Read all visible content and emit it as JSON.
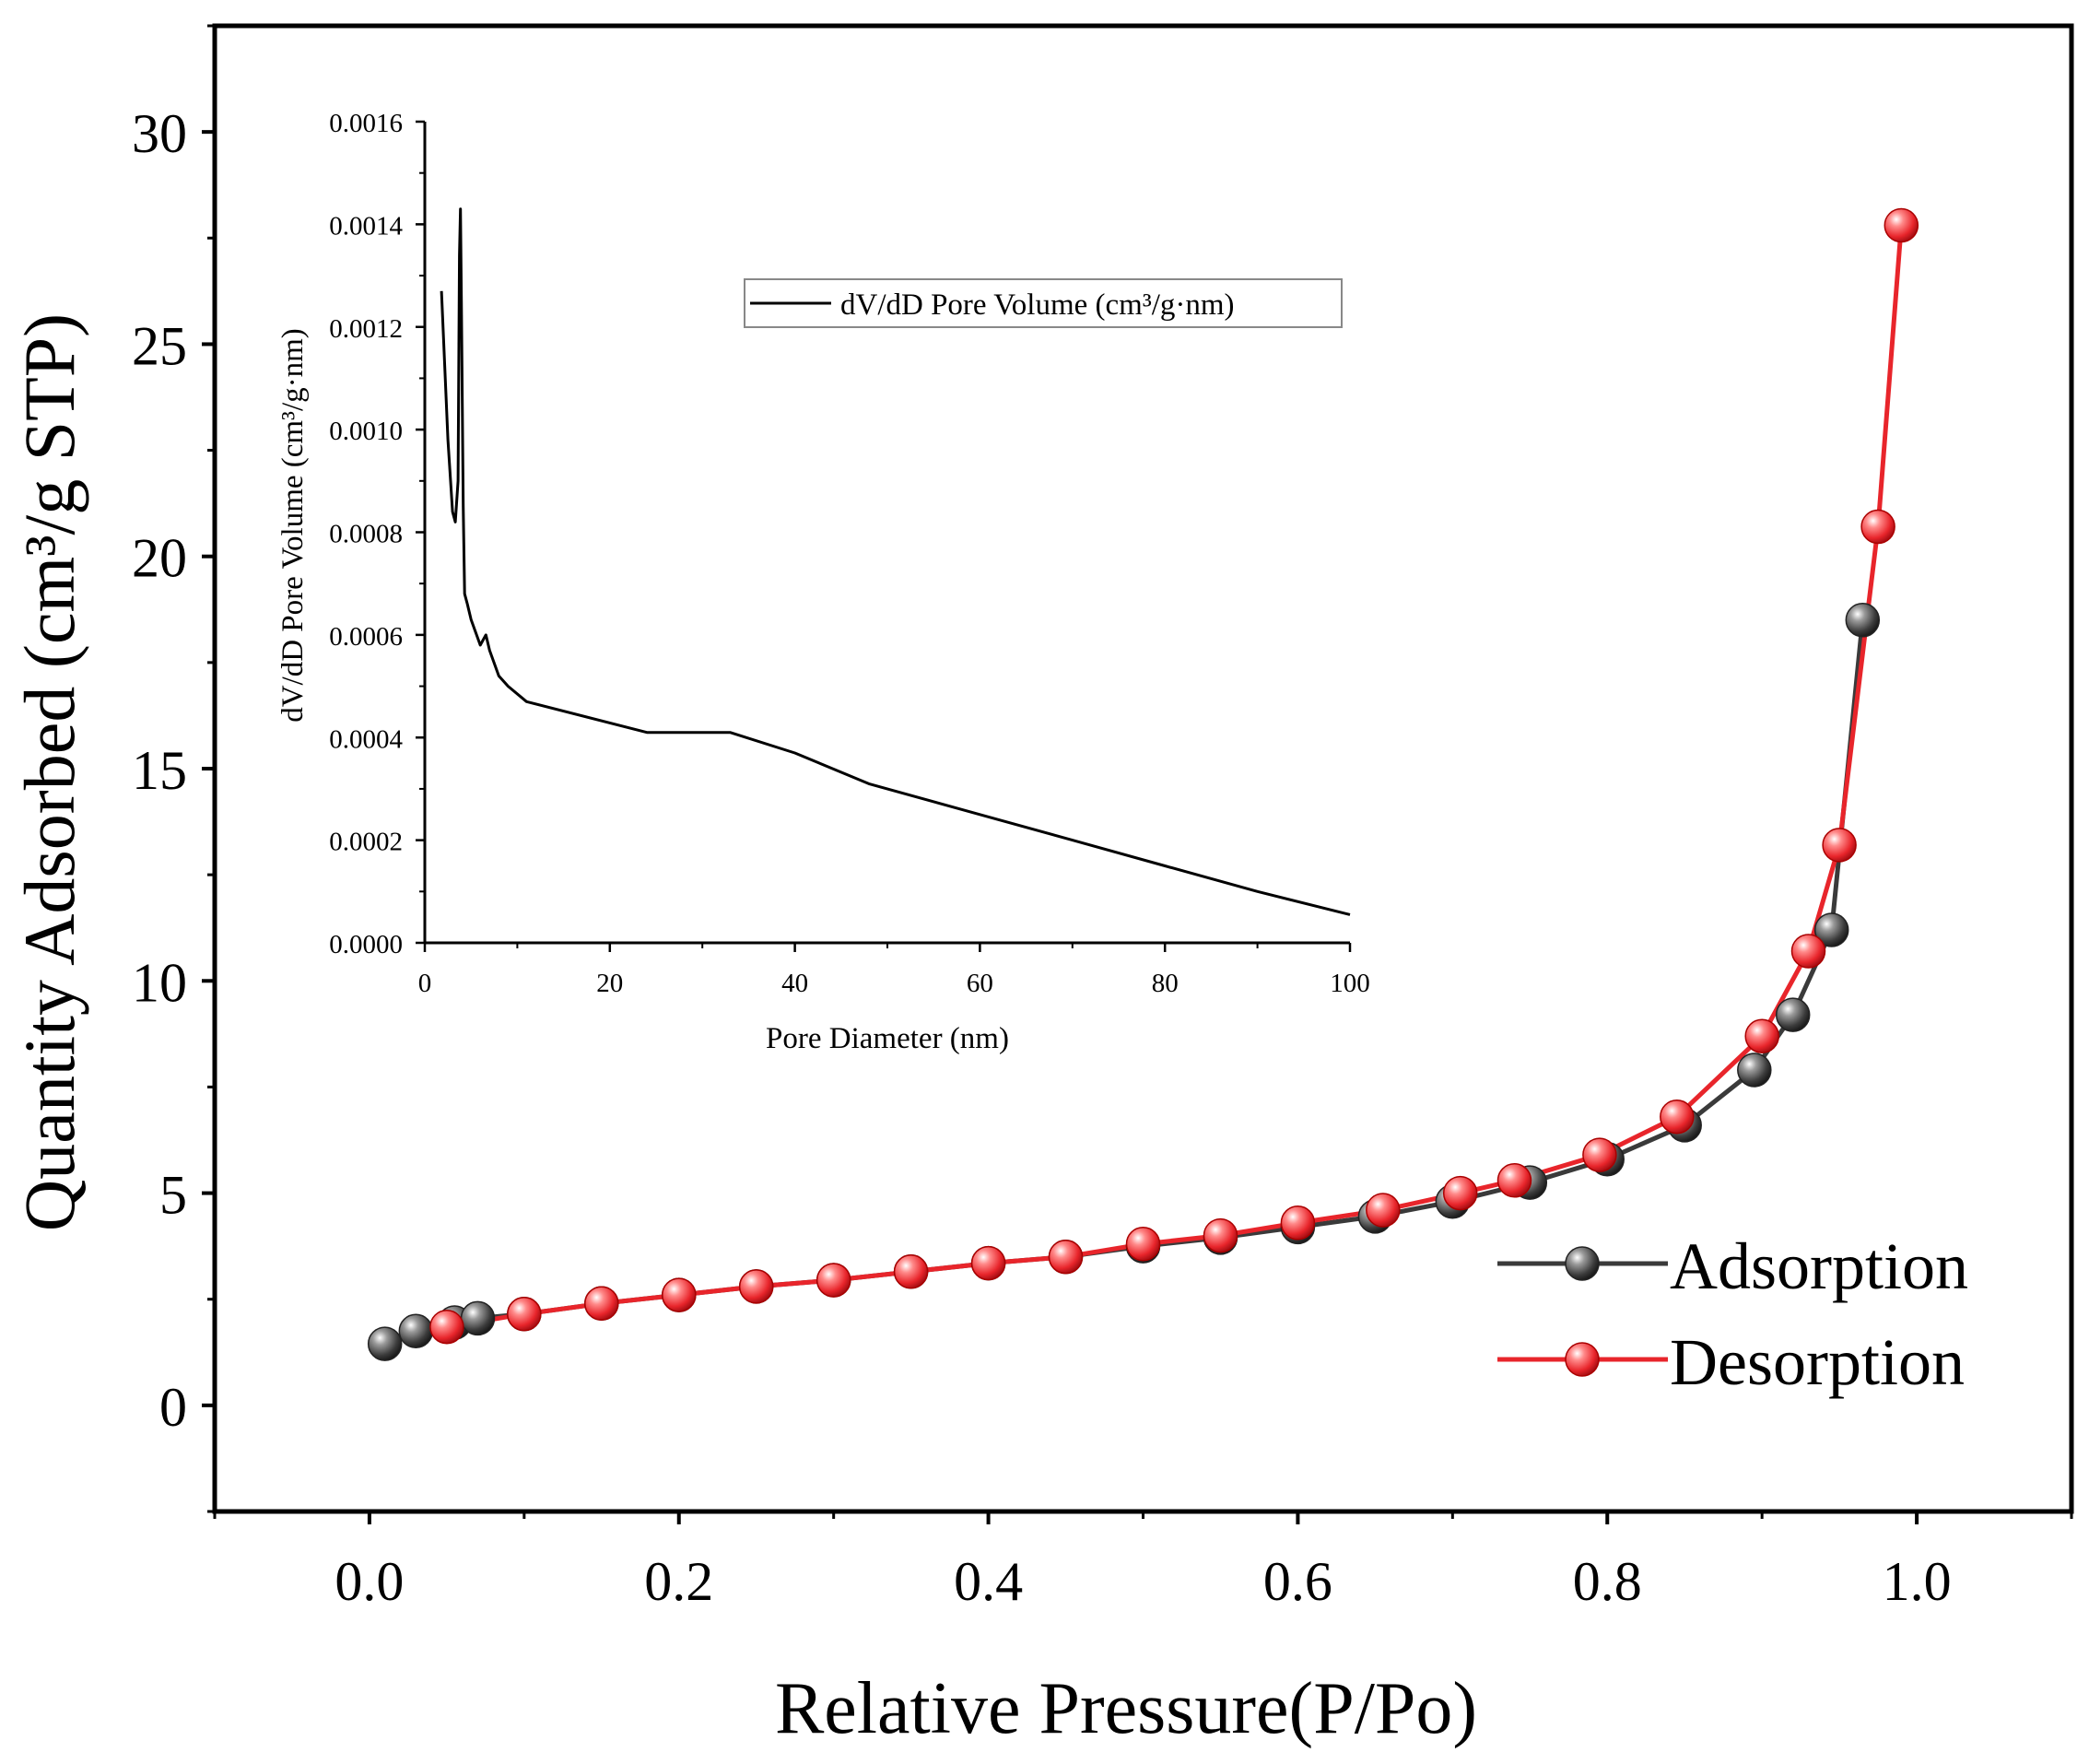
{
  "chart_data": [
    {
      "type": "line",
      "xlabel": "Relative Pressure(P/Po)",
      "ylabel": "Quantity Adsorbed (cm³/g STP)",
      "xlim": [
        -0.1,
        1.1
      ],
      "ylim": [
        -2.5,
        32.5
      ],
      "x_ticks": [
        "0.0",
        "0.2",
        "0.4",
        "0.6",
        "0.8",
        "1.0"
      ],
      "x_tick_values": [
        0.0,
        0.2,
        0.4,
        0.6,
        0.8,
        1.0
      ],
      "y_ticks": [
        "0",
        "5",
        "10",
        "15",
        "20",
        "25",
        "30"
      ],
      "y_tick_values": [
        0,
        5,
        10,
        15,
        20,
        25,
        30
      ],
      "grid": false,
      "legend_position": "bottom-right",
      "series": [
        {
          "name": "Adsorption",
          "color": "#3a3a3a",
          "marker": "sphere",
          "x": [
            0.01,
            0.03,
            0.055,
            0.07,
            0.1,
            0.15,
            0.2,
            0.25,
            0.3,
            0.35,
            0.4,
            0.45,
            0.5,
            0.55,
            0.6,
            0.65,
            0.7,
            0.75,
            0.8,
            0.85,
            0.895,
            0.92,
            0.945,
            0.965
          ],
          "y": [
            1.45,
            1.75,
            1.95,
            2.05,
            2.15,
            2.4,
            2.6,
            2.8,
            2.95,
            3.15,
            3.35,
            3.5,
            3.75,
            3.95,
            4.2,
            4.45,
            4.8,
            5.25,
            5.8,
            6.6,
            7.9,
            9.2,
            11.2,
            18.5
          ]
        },
        {
          "name": "Desorption",
          "color": "#e8252b",
          "marker": "sphere",
          "x": [
            0.05,
            0.1,
            0.15,
            0.2,
            0.25,
            0.3,
            0.35,
            0.4,
            0.45,
            0.5,
            0.55,
            0.6,
            0.655,
            0.705,
            0.74,
            0.795,
            0.845,
            0.9,
            0.93,
            0.95,
            0.975,
            0.99
          ],
          "y": [
            1.85,
            2.15,
            2.4,
            2.6,
            2.8,
            2.95,
            3.15,
            3.35,
            3.5,
            3.8,
            4.0,
            4.3,
            4.6,
            5.0,
            5.3,
            5.9,
            6.8,
            8.7,
            10.7,
            13.2,
            20.7,
            27.8
          ]
        }
      ]
    },
    {
      "type": "line",
      "xlabel": "Pore Diameter (nm)",
      "ylabel": "dV/dD Pore Volume (cm³/g·nm)",
      "xlim": [
        0,
        100
      ],
      "ylim": [
        0,
        0.0016
      ],
      "x_ticks": [
        "0",
        "20",
        "40",
        "60",
        "80",
        "100"
      ],
      "x_tick_values": [
        0,
        20,
        40,
        60,
        80,
        100
      ],
      "y_ticks": [
        "0.0000",
        "0.0002",
        "0.0004",
        "0.0006",
        "0.0008",
        "0.0010",
        "0.0012",
        "0.0014",
        "0.0016"
      ],
      "y_tick_values": [
        0,
        0.0002,
        0.0004,
        0.0006,
        0.0008,
        0.001,
        0.0012,
        0.0014,
        0.0016
      ],
      "grid": false,
      "legend_position": "top-right",
      "series": [
        {
          "name": "dV/dD Pore Volume (cm³/g·nm)",
          "color": "#000000",
          "x": [
            1.8,
            2.5,
            3.0,
            3.3,
            3.6,
            3.75,
            3.85,
            3.95,
            4.05,
            4.15,
            4.3,
            4.6,
            5.0,
            6.0,
            6.6,
            7.0,
            8.0,
            9.0,
            11.0,
            24.0,
            33.0,
            40.0,
            48.0,
            60.0,
            70.0,
            80.0,
            90.0,
            100.0
          ],
          "y": [
            0.00127,
            0.00098,
            0.00084,
            0.00082,
            0.0009,
            0.00134,
            0.00143,
            0.00125,
            0.00105,
            0.00085,
            0.00068,
            0.00066,
            0.00063,
            0.00058,
            0.0006,
            0.00057,
            0.00052,
            0.0005,
            0.00047,
            0.00041,
            0.00041,
            0.00037,
            0.00031,
            0.00025,
            0.0002,
            0.00015,
            0.0001,
            5.5e-05
          ]
        }
      ]
    }
  ]
}
